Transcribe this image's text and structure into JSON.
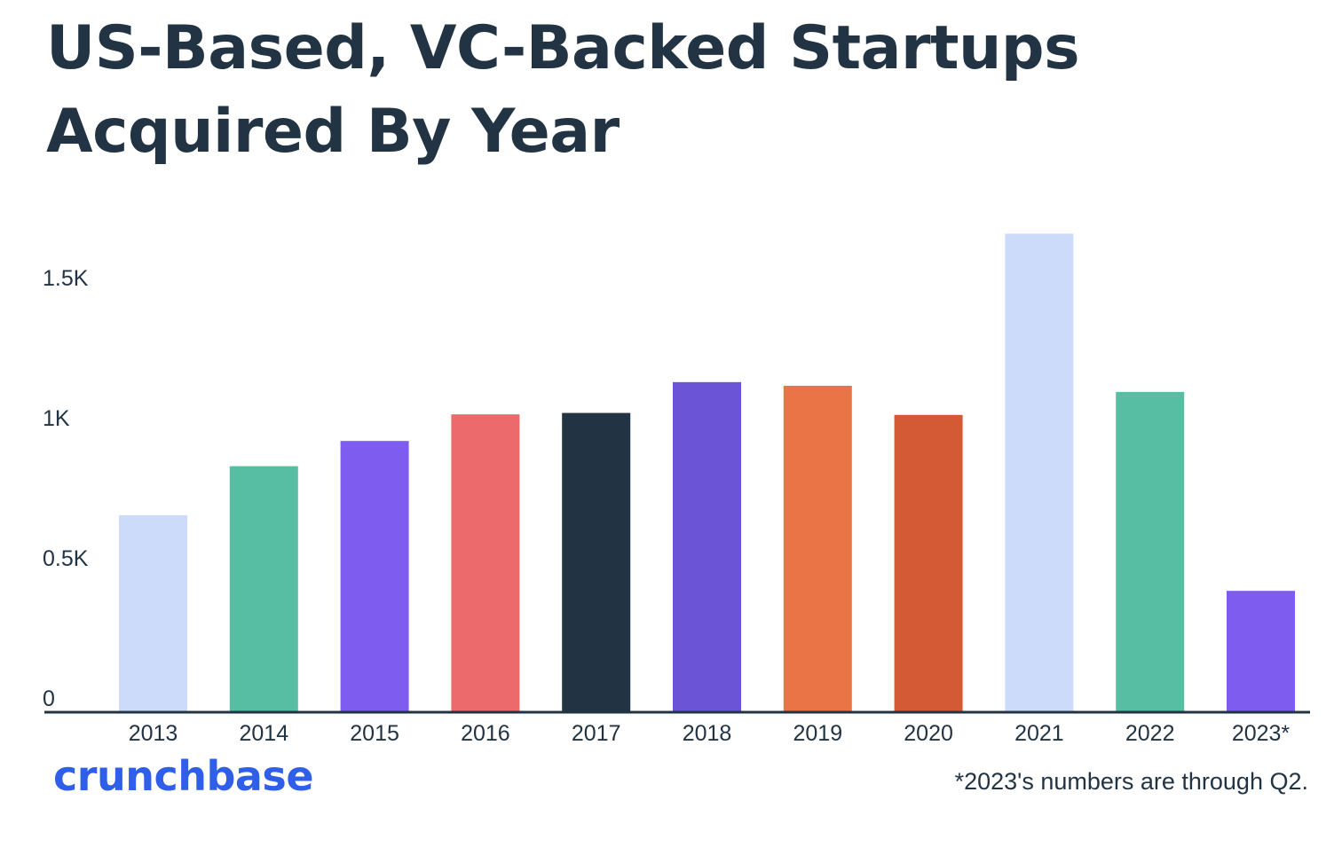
{
  "chart_data": {
    "type": "bar",
    "title": "US-Based, VC-Backed Startups Acquired By Year",
    "xlabel": "",
    "ylabel": "",
    "ylim": [
      0,
      1700
    ],
    "yticks": [
      {
        "value": 0,
        "label": "0"
      },
      {
        "value": 500,
        "label": "0.5K"
      },
      {
        "value": 1000,
        "label": "1K"
      },
      {
        "value": 1500,
        "label": "1.5K"
      }
    ],
    "grid": false,
    "categories": [
      "2013",
      "2014",
      "2015",
      "2016",
      "2017",
      "2018",
      "2019",
      "2020",
      "2021",
      "2022",
      "2023*"
    ],
    "values": [
      700,
      875,
      965,
      1060,
      1065,
      1175,
      1162,
      1058,
      1705,
      1140,
      430
    ],
    "colors": [
      "#cddbfa",
      "#58bea3",
      "#7f5cf0",
      "#ec6a6b",
      "#223444",
      "#6b55d6",
      "#ea7446",
      "#d45a35",
      "#cddbfa",
      "#58bea3",
      "#7f5cf0"
    ]
  },
  "brand": {
    "name": "crunchbase"
  },
  "footnote": "*2023's numbers are through Q2.",
  "colors": {
    "text": "#223444",
    "axis": "#223444",
    "brand": "#2f5fe9"
  }
}
